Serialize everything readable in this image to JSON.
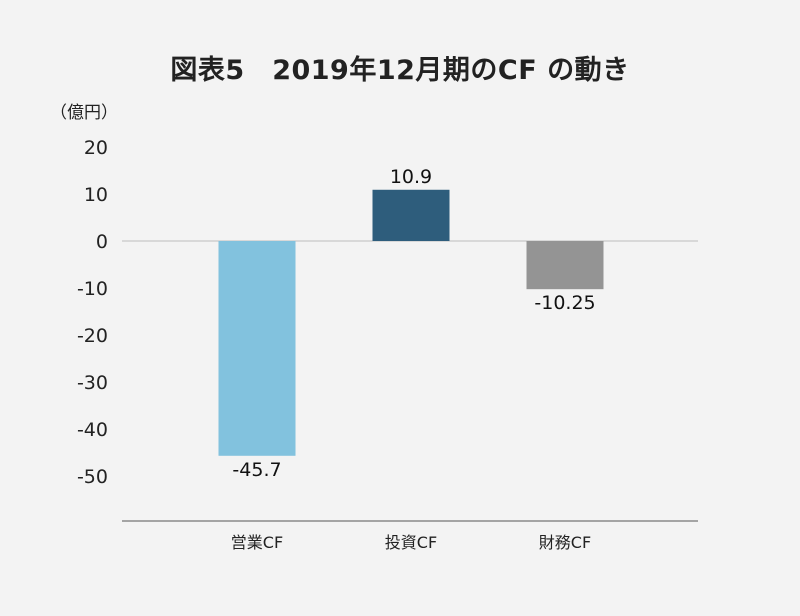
{
  "chart_data": {
    "type": "bar",
    "title": "図表5　2019年12月期のCF の動き",
    "unit_label": "（億円）",
    "categories": [
      "営業CF",
      "投資CF",
      "財務CF"
    ],
    "values": [
      -45.7,
      10.9,
      -10.25
    ],
    "value_labels": [
      "-45.7",
      "10.9",
      "-10.25"
    ],
    "colors": [
      "#82c2de",
      "#2e5d7c",
      "#949494"
    ],
    "yticks": [
      20,
      10,
      0,
      -10,
      -20,
      -30,
      -40,
      -50
    ],
    "ylim": [
      -59,
      22
    ],
    "grid": false,
    "legend": "none"
  }
}
